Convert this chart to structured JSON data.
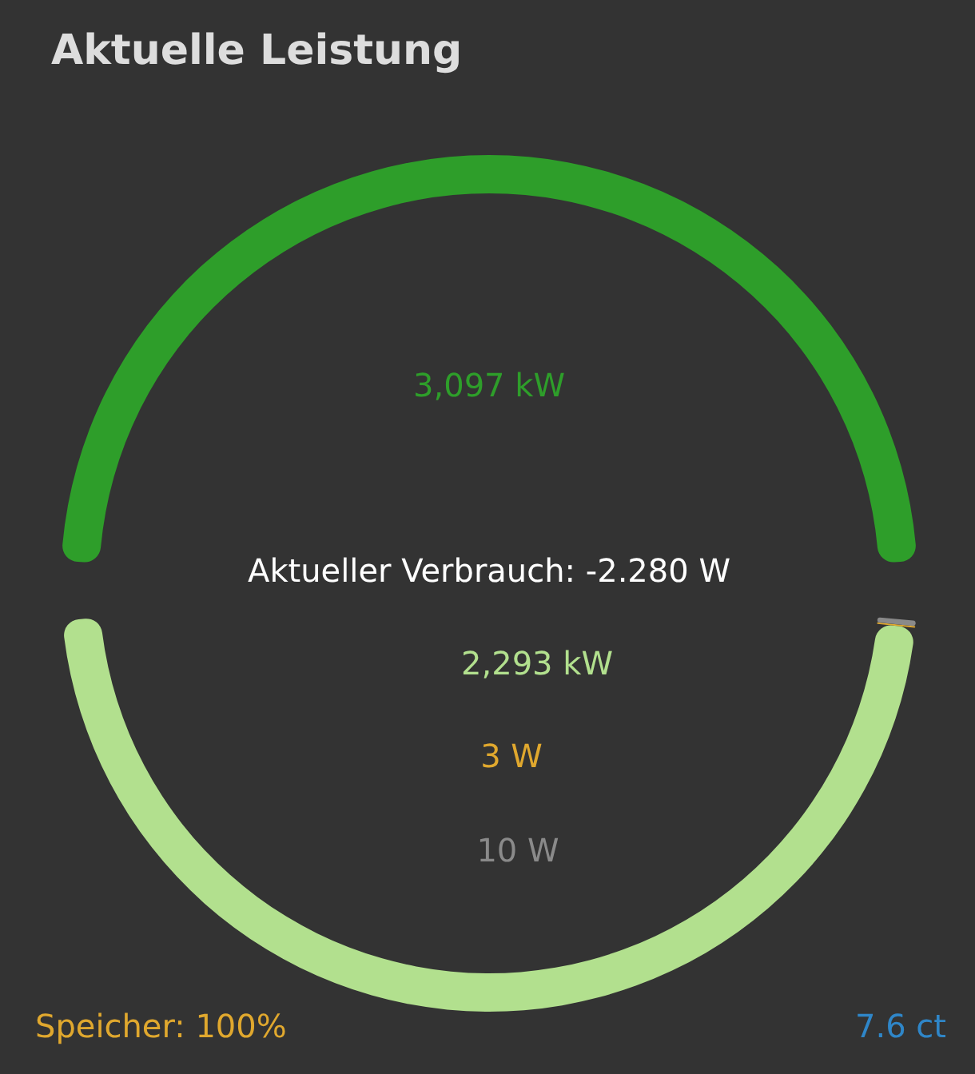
{
  "chart_data": {
    "type": "other",
    "title": "Aktuelle Leistung",
    "categories": [
      null,
      null,
      null,
      null
    ],
    "values": [
      3097,
      2293,
      3,
      10
    ],
    "value_labels": [
      "3,097 kW",
      "2,293 kW",
      "3 W",
      "10 W"
    ],
    "colors": [
      "#2e9e2a",
      "#b2e08e",
      "#e0a82e",
      "#8a8a8a"
    ],
    "annotations": [
      "Aktueller Verbrauch: -2.280 W",
      "Speicher: 100%",
      "7.6 ct"
    ]
  }
}
